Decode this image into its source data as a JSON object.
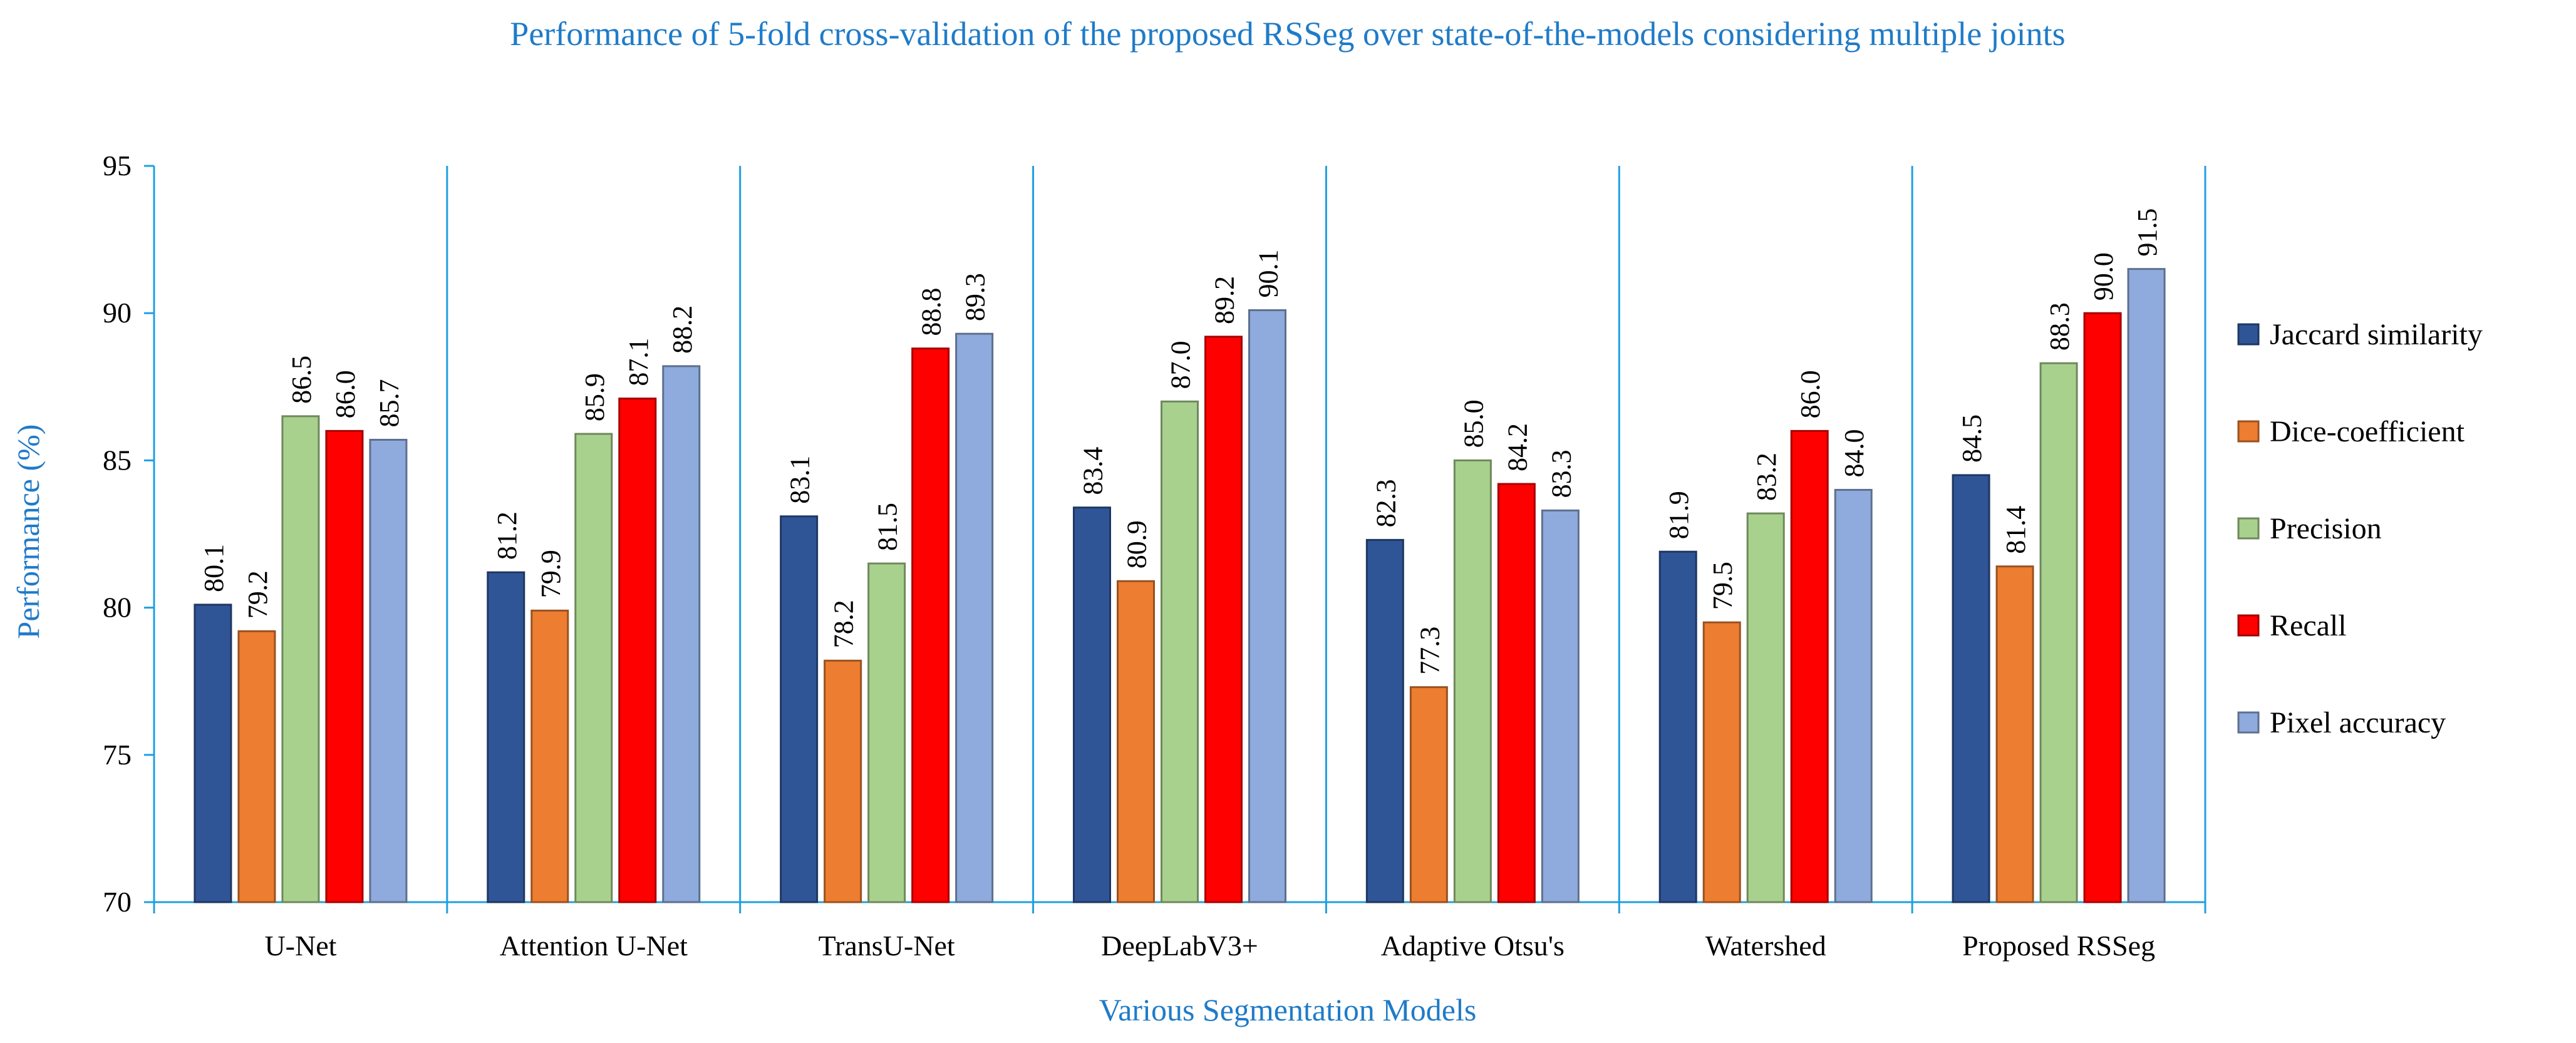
{
  "chart_data": {
    "type": "bar",
    "title": "Performance of 5-fold cross-validation of the proposed RSSeg over state-of-the-models considering multiple joints",
    "xlabel": "Various Segmentation Models",
    "ylabel": "Performance (%)",
    "ylim": [
      70,
      95
    ],
    "yticks": [
      "70",
      "75",
      "80",
      "85",
      "90",
      "95"
    ],
    "grid": false,
    "legend_position": "right",
    "categories": [
      "U-Net",
      "Attention U-Net",
      "TransU-Net",
      "DeepLabV3+",
      "Adaptive Otsu's",
      "Watershed",
      "Proposed RSSeg"
    ],
    "series": [
      {
        "name": "Jaccard similarity",
        "color": "#2f5597",
        "values": [
          80.1,
          81.2,
          83.1,
          83.4,
          82.3,
          81.9,
          84.5
        ],
        "labels": [
          "80.1",
          "81.2",
          "83.1",
          "83.4",
          "82.3",
          "81.9",
          "84.5"
        ]
      },
      {
        "name": "Dice-coefficient",
        "color": "#ed7d31",
        "values": [
          79.2,
          79.9,
          78.2,
          80.9,
          77.3,
          79.5,
          81.4
        ],
        "labels": [
          "79.2",
          "79.9",
          "78.2",
          "80.9",
          "77.3",
          "79.5",
          "81.4"
        ]
      },
      {
        "name": "Precision",
        "color": "#a9d18e",
        "values": [
          86.5,
          85.9,
          81.5,
          87.0,
          85.0,
          83.2,
          88.3
        ],
        "labels": [
          "86.5",
          "85.9",
          "81.5",
          "87.0",
          "85.0",
          "83.2",
          "88.3"
        ]
      },
      {
        "name": "Recall",
        "color": "#ff0000",
        "values": [
          86.0,
          87.1,
          88.8,
          89.2,
          84.2,
          86.0,
          90.0
        ],
        "labels": [
          "86.0",
          "87.1",
          "88.8",
          "89.2",
          "84.2",
          "86.0",
          "90.0"
        ]
      },
      {
        "name": "Pixel accuracy",
        "color": "#8faadc",
        "values": [
          85.7,
          88.2,
          89.3,
          90.1,
          83.3,
          84.0,
          91.5
        ],
        "labels": [
          "85.7",
          "88.2",
          "89.3",
          "90.1",
          "83.3",
          "84.0",
          "91.5"
        ]
      }
    ],
    "axis_color": "#1fa0e0"
  }
}
